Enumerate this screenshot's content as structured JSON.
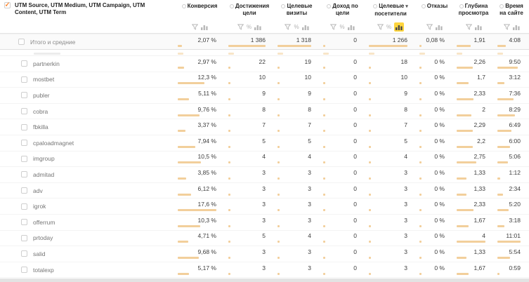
{
  "glyphs": {
    "check": "✓",
    "sort_desc": "▾",
    "percent": "%"
  },
  "colors": {
    "bar": "#f2cf9b",
    "active_icon_bg": "#ffd53e",
    "check": "#ff7e20"
  },
  "table": {
    "title": "UTM Source, UTM Medium, UTM Campaign, UTM Content, UTM Term",
    "columns": [
      {
        "id": "conversion",
        "label": "Конверсия",
        "lines": [
          "Конверсия"
        ],
        "percent_toggle": false,
        "sorted": false,
        "chart_active": false
      },
      {
        "id": "goal-reaches",
        "label": "Достижения цели",
        "lines": [
          "Достижения",
          "цели"
        ],
        "percent_toggle": true,
        "sorted": false,
        "chart_active": false
      },
      {
        "id": "goal-visits",
        "label": "Целевые визиты",
        "lines": [
          "Целевые",
          "визиты"
        ],
        "percent_toggle": true,
        "sorted": false,
        "chart_active": false
      },
      {
        "id": "goal-revenue",
        "label": "Доход по цели",
        "lines": [
          "Доход по",
          "цели"
        ],
        "percent_toggle": true,
        "sorted": false,
        "chart_active": false
      },
      {
        "id": "goal-visitors",
        "label": "Целевые посетители",
        "lines": [
          "Целевые",
          "посетители"
        ],
        "percent_toggle": true,
        "sorted": true,
        "chart_active": true
      },
      {
        "id": "bounces",
        "label": "Отказы",
        "lines": [
          "Отказы"
        ],
        "percent_toggle": false,
        "sorted": false,
        "chart_active": false,
        "bar_max": 100
      },
      {
        "id": "depth",
        "label": "Глубина просмотра",
        "lines": [
          "Глубина",
          "просмотра"
        ],
        "percent_toggle": false,
        "sorted": false,
        "chart_active": false
      },
      {
        "id": "time-on-site",
        "label": "Время на сайте",
        "lines": [
          "Время",
          "на сайте"
        ],
        "percent_toggle": false,
        "sorted": false,
        "chart_active": false
      }
    ],
    "totals": {
      "label": "Итого и средние",
      "cells": [
        "2,07 %",
        "1 386",
        "1 318",
        "0",
        "1 266",
        "0,08 %",
        "1,91",
        "4:08"
      ],
      "nums": [
        2.07,
        1386,
        1318,
        0,
        1266,
        0.08,
        1.91,
        248
      ]
    },
    "rows": [
      {
        "label": "partnerkin",
        "cells": [
          "2,97 %",
          "22",
          "19",
          "0",
          "18",
          "0 %",
          "2,26",
          "9:50"
        ],
        "nums": [
          2.97,
          22,
          19,
          0,
          18,
          0,
          2.26,
          590
        ]
      },
      {
        "label": "mostbet",
        "cells": [
          "12,3 %",
          "10",
          "10",
          "0",
          "10",
          "0 %",
          "1,7",
          "3:12"
        ],
        "nums": [
          12.3,
          10,
          10,
          0,
          10,
          0,
          1.7,
          192
        ]
      },
      {
        "label": "publer",
        "cells": [
          "5,11 %",
          "9",
          "9",
          "0",
          "9",
          "0 %",
          "2,33",
          "7:36"
        ],
        "nums": [
          5.11,
          9,
          9,
          0,
          9,
          0,
          2.33,
          456
        ]
      },
      {
        "label": "cobra",
        "cells": [
          "9,76 %",
          "8",
          "8",
          "0",
          "8",
          "0 %",
          "2",
          "8:29"
        ],
        "nums": [
          9.76,
          8,
          8,
          0,
          8,
          0,
          2,
          509
        ]
      },
      {
        "label": "fbkilla",
        "cells": [
          "3,37 %",
          "7",
          "7",
          "0",
          "7",
          "0 %",
          "2,29",
          "6:49"
        ],
        "nums": [
          3.37,
          7,
          7,
          0,
          7,
          0,
          2.29,
          409
        ]
      },
      {
        "label": "cpaloadmagnet",
        "cells": [
          "7,94 %",
          "5",
          "5",
          "0",
          "5",
          "0 %",
          "2,2",
          "6:00"
        ],
        "nums": [
          7.94,
          5,
          5,
          0,
          5,
          0,
          2.2,
          360
        ]
      },
      {
        "label": "imgroup",
        "cells": [
          "10,5 %",
          "4",
          "4",
          "0",
          "4",
          "0 %",
          "2,75",
          "5:06"
        ],
        "nums": [
          10.5,
          4,
          4,
          0,
          4,
          0,
          2.75,
          306
        ]
      },
      {
        "label": "admitad",
        "cells": [
          "3,85 %",
          "3",
          "3",
          "0",
          "3",
          "0 %",
          "1,33",
          "1:12"
        ],
        "nums": [
          3.85,
          3,
          3,
          0,
          3,
          0,
          1.33,
          72
        ]
      },
      {
        "label": "adv",
        "cells": [
          "6,12 %",
          "3",
          "3",
          "0",
          "3",
          "0 %",
          "1,33",
          "2:34"
        ],
        "nums": [
          6.12,
          3,
          3,
          0,
          3,
          0,
          1.33,
          154
        ]
      },
      {
        "label": "igrok",
        "cells": [
          "17,6 %",
          "3",
          "3",
          "0",
          "3",
          "0 %",
          "2,33",
          "5:20"
        ],
        "nums": [
          17.6,
          3,
          3,
          0,
          3,
          0,
          2.33,
          320
        ]
      },
      {
        "label": "offerrum",
        "cells": [
          "10,3 %",
          "3",
          "3",
          "0",
          "3",
          "0 %",
          "1,67",
          "3:18"
        ],
        "nums": [
          10.3,
          3,
          3,
          0,
          3,
          0,
          1.67,
          198
        ]
      },
      {
        "label": "prtoday",
        "cells": [
          "4,71 %",
          "5",
          "4",
          "0",
          "3",
          "0 %",
          "4",
          "11:01"
        ],
        "nums": [
          4.71,
          5,
          4,
          0,
          3,
          0,
          4,
          661
        ]
      },
      {
        "label": "salid",
        "cells": [
          "9,68 %",
          "3",
          "3",
          "0",
          "3",
          "0 %",
          "1,33",
          "5:54"
        ],
        "nums": [
          9.68,
          3,
          3,
          0,
          3,
          0,
          1.33,
          354
        ]
      },
      {
        "label": "totalexp",
        "cells": [
          "5,17 %",
          "3",
          "3",
          "0",
          "3",
          "0 %",
          "1,67",
          "0:59"
        ],
        "nums": [
          5.17,
          3,
          3,
          0,
          3,
          0,
          1.67,
          59
        ]
      }
    ]
  }
}
